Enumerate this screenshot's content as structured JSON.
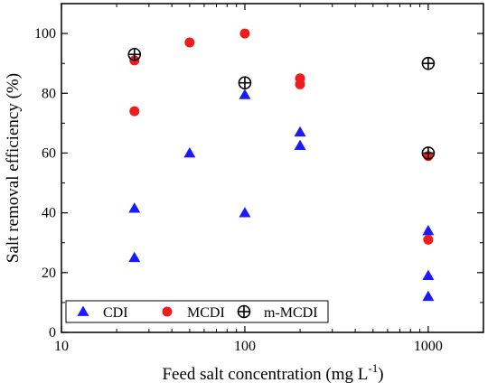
{
  "chart_data": {
    "type": "scatter",
    "x_scale": "log",
    "xlim": [
      10,
      2000
    ],
    "ylim": [
      0,
      110
    ],
    "xlabel": "Feed salt concentration (mg L",
    "xlabel_sup": "-1",
    "xlabel_suffix": ")",
    "ylabel": "Salt removal efficiency (%)",
    "x_ticks": [
      10,
      100,
      1000
    ],
    "x_tick_labels": [
      "10",
      "100",
      "1000"
    ],
    "y_ticks": [
      0,
      20,
      40,
      60,
      80,
      100
    ],
    "y_tick_labels": [
      "0",
      "20",
      "40",
      "60",
      "80",
      "100"
    ],
    "grid": false,
    "legend_position": "bottom-left",
    "series": [
      {
        "name": "CDI",
        "marker": "triangle",
        "color": "#1a1aff",
        "points": [
          [
            25,
            41.5
          ],
          [
            25,
            25
          ],
          [
            50,
            60
          ],
          [
            100,
            79.5
          ],
          [
            100,
            40
          ],
          [
            200,
            67
          ],
          [
            200,
            62.5
          ],
          [
            1000,
            34
          ],
          [
            1000,
            19
          ],
          [
            1000,
            12
          ]
        ]
      },
      {
        "name": "MCDI",
        "marker": "circle",
        "color": "#ee1c1c",
        "points": [
          [
            25,
            91
          ],
          [
            25,
            74
          ],
          [
            50,
            97
          ],
          [
            100,
            100
          ],
          [
            200,
            85
          ],
          [
            200,
            83
          ],
          [
            1000,
            59
          ],
          [
            1000,
            31
          ]
        ]
      },
      {
        "name": "m-MCDI",
        "marker": "circle-cross",
        "color": "#000000",
        "points": [
          [
            25,
            93
          ],
          [
            100,
            83.5
          ],
          [
            1000,
            90
          ],
          [
            1000,
            60
          ]
        ]
      }
    ]
  }
}
